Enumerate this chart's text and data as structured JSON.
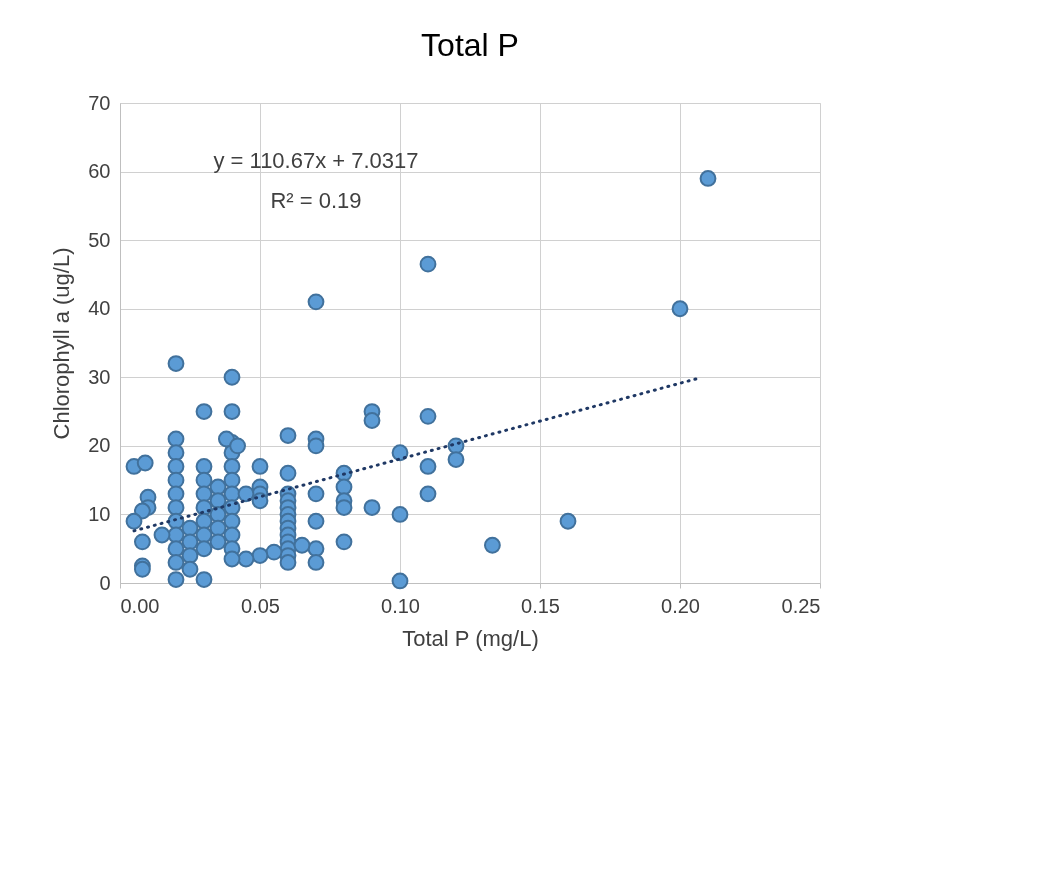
{
  "chart_data": {
    "type": "scatter",
    "title": "Total P",
    "xlabel": "Total P (mg/L)",
    "ylabel": "Chlorophyll a (ug/L)",
    "annotations": [
      "y = 110.67x + 7.0317",
      "R² = 0.19"
    ],
    "xlim": [
      0,
      0.25
    ],
    "ylim": [
      0,
      70
    ],
    "xticks": [
      {
        "value": 0,
        "label": "0.00"
      },
      {
        "value": 0.05,
        "label": "0.05"
      },
      {
        "value": 0.1,
        "label": "0.10"
      },
      {
        "value": 0.15,
        "label": "0.15"
      },
      {
        "value": 0.2,
        "label": "0.20"
      },
      {
        "value": 0.25,
        "label": "0.25"
      }
    ],
    "yticks": [
      0,
      10,
      20,
      30,
      40,
      50,
      60,
      70
    ],
    "grid": true,
    "marker": "circle",
    "series": [
      {
        "color": "#5b9bd5",
        "x": [
          0.21,
          0.11,
          0.07,
          0.2,
          0.02,
          0.04,
          0.03,
          0.04,
          0.09,
          0.09,
          0.11,
          0.12,
          0.12,
          0.11,
          0.11,
          0.1,
          0.1,
          0.1,
          0.09,
          0.133,
          0.16,
          0.08,
          0.08,
          0.08,
          0.08,
          0.08,
          0.07,
          0.07,
          0.07,
          0.07,
          0.07,
          0.07,
          0.06,
          0.06,
          0.06,
          0.06,
          0.06,
          0.06,
          0.06,
          0.06,
          0.06,
          0.06,
          0.06,
          0.06,
          0.06,
          0.065,
          0.055,
          0.05,
          0.05,
          0.05,
          0.05,
          0.05,
          0.045,
          0.04,
          0.04,
          0.04,
          0.04,
          0.04,
          0.04,
          0.04,
          0.04,
          0.04,
          0.04,
          0.045,
          0.035,
          0.035,
          0.035,
          0.035,
          0.035,
          0.03,
          0.03,
          0.03,
          0.03,
          0.03,
          0.03,
          0.03,
          0.03,
          0.025,
          0.025,
          0.025,
          0.025,
          0.02,
          0.02,
          0.02,
          0.02,
          0.02,
          0.02,
          0.02,
          0.02,
          0.02,
          0.02,
          0.02,
          0.015,
          0.005,
          0.009,
          0.01,
          0.01,
          0.008,
          0.005,
          0.008,
          0.008,
          0.008,
          0.038,
          0.042
        ],
        "values": [
          59,
          46.5,
          41,
          40,
          32,
          30,
          25,
          25,
          25,
          23.7,
          24.3,
          20,
          18,
          17,
          13,
          19,
          10,
          0.3,
          11,
          5.5,
          9,
          16,
          14,
          12,
          11,
          6,
          21,
          20,
          13,
          9,
          5,
          3,
          21.5,
          16,
          13,
          12,
          11,
          10,
          9,
          8,
          7,
          6,
          5,
          4,
          3,
          5.5,
          4.5,
          17,
          14,
          13,
          12,
          4,
          3.5,
          20.5,
          19,
          17,
          15,
          13,
          11,
          9,
          7,
          5,
          3.5,
          13,
          14,
          12,
          10,
          8,
          6,
          17,
          15,
          13,
          11,
          9,
          7,
          5,
          0.5,
          8,
          6,
          4,
          2,
          21,
          19,
          17,
          15,
          13,
          11,
          9,
          7,
          5,
          3,
          0.5,
          7,
          17,
          17.5,
          12.5,
          11,
          10.5,
          9,
          6,
          2.5,
          2,
          21,
          20
        ]
      },
      {
        "type": "line",
        "color": "#1f3864",
        "line_style": "dotted",
        "marker": "none",
        "x": [
          0.005,
          0.207
        ],
        "values": [
          7.6,
          29.9
        ]
      }
    ]
  }
}
